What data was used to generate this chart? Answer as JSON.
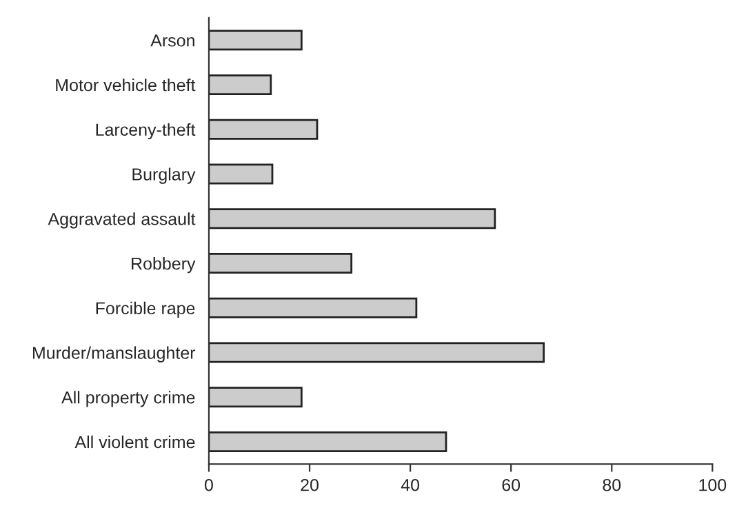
{
  "chart_data": {
    "type": "bar",
    "orientation": "horizontal",
    "categories": [
      "Arson",
      "Motor vehicle theft",
      "Larceny-theft",
      "Burglary",
      "Aggravated assault",
      "Robbery",
      "Forcible rape",
      "Murder/manslaughter",
      "All property crime",
      "All violent crime"
    ],
    "values": [
      18.4,
      12.3,
      21.5,
      12.6,
      56.8,
      28.3,
      41.2,
      66.5,
      18.4,
      47.1
    ],
    "color": "#cccccc",
    "xlim": [
      0,
      100
    ],
    "xticks": [
      0,
      20,
      40,
      60,
      80,
      100
    ],
    "grid": false
  }
}
